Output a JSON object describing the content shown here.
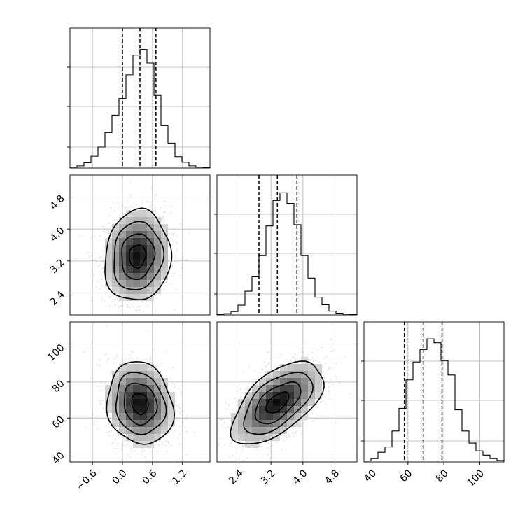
{
  "chart_data": {
    "type": "corner",
    "parameters": [
      {
        "name": "",
        "range": [
          -1.05,
          1.75
        ],
        "ticks": [
          -0.6,
          0.0,
          0.6,
          1.2
        ],
        "tick_labels": [
          "−0.6",
          "0.0",
          "0.6",
          "1.2"
        ]
      },
      {
        "name": "",
        "range": [
          1.85,
          5.35
        ],
        "ticks": [
          2.4,
          3.2,
          4.0,
          4.8
        ],
        "tick_labels": [
          "2.4",
          "3.2",
          "4.0",
          "4.8"
        ]
      },
      {
        "name": "",
        "range": [
          35.5,
          113.5
        ],
        "ticks": [
          40,
          60,
          80,
          100
        ],
        "tick_labels": [
          "40",
          "60",
          "80",
          "100"
        ]
      }
    ],
    "quantiles": [
      [
        0.0,
        0.35,
        0.67
      ],
      [
        2.9,
        3.36,
        3.85
      ],
      [
        58,
        68.5,
        79
      ]
    ],
    "histograms": [
      {
        "bin_edges": [
          -1.05,
          -0.91,
          -0.77,
          -0.63,
          -0.49,
          -0.35,
          -0.21,
          -0.07,
          0.07,
          0.21,
          0.35,
          0.49,
          0.63,
          0.77,
          0.91,
          1.05,
          1.19,
          1.33,
          1.47,
          1.61,
          1.75
        ],
        "counts": [
          2,
          5,
          12,
          27,
          48,
          81,
          121,
          159,
          213,
          258,
          271,
          240,
          166,
          97,
          57,
          26,
          13,
          5,
          2,
          1
        ],
        "ylim": [
          0,
          320
        ]
      },
      {
        "bin_edges": [
          1.85,
          2.025,
          2.2,
          2.375,
          2.55,
          2.725,
          2.9,
          3.075,
          3.25,
          3.425,
          3.6,
          3.775,
          3.95,
          4.125,
          4.3,
          4.475,
          4.65,
          4.825,
          5.0,
          5.175,
          5.35
        ],
        "counts": [
          1,
          3,
          8,
          23,
          56,
          90,
          140,
          210,
          270,
          288,
          263,
          213,
          140,
          87,
          42,
          24,
          9,
          4,
          2,
          1
        ],
        "ylim": [
          0,
          330
        ]
      },
      {
        "bin_edges": [
          35.5,
          39.4,
          43.3,
          47.2,
          51.1,
          55.0,
          58.9,
          62.8,
          66.7,
          70.6,
          74.5,
          78.4,
          82.3,
          86.2,
          90.1,
          94.0,
          97.9,
          101.8,
          105.7,
          109.6,
          113.5
        ],
        "counts": [
          2,
          7,
          20,
          31,
          64,
          111,
          170,
          207,
          233,
          255,
          247,
          210,
          180,
          108,
          64,
          39,
          23,
          14,
          7,
          3
        ],
        "ylim": [
          0,
          290
        ]
      }
    ],
    "pairs": [
      {
        "x_param": 0,
        "y_param": 1,
        "center": [
          0.3,
          3.32
        ],
        "sd": [
          0.33,
          0.57
        ],
        "rho": 0.08,
        "contour_levels": [
          0.118,
          0.393,
          0.675,
          0.865
        ]
      },
      {
        "x_param": 0,
        "y_param": 2,
        "center": [
          0.35,
          68.0
        ],
        "sd": [
          0.33,
          11.5
        ],
        "rho": -0.12,
        "contour_levels": [
          0.118,
          0.393,
          0.675,
          0.865
        ]
      },
      {
        "x_param": 1,
        "y_param": 2,
        "center": [
          3.36,
          68.5
        ],
        "sd": [
          0.57,
          11.5
        ],
        "rho": 0.58,
        "contour_levels": [
          0.118,
          0.393,
          0.675,
          0.865
        ]
      }
    ],
    "grid": true,
    "legend": "none"
  }
}
